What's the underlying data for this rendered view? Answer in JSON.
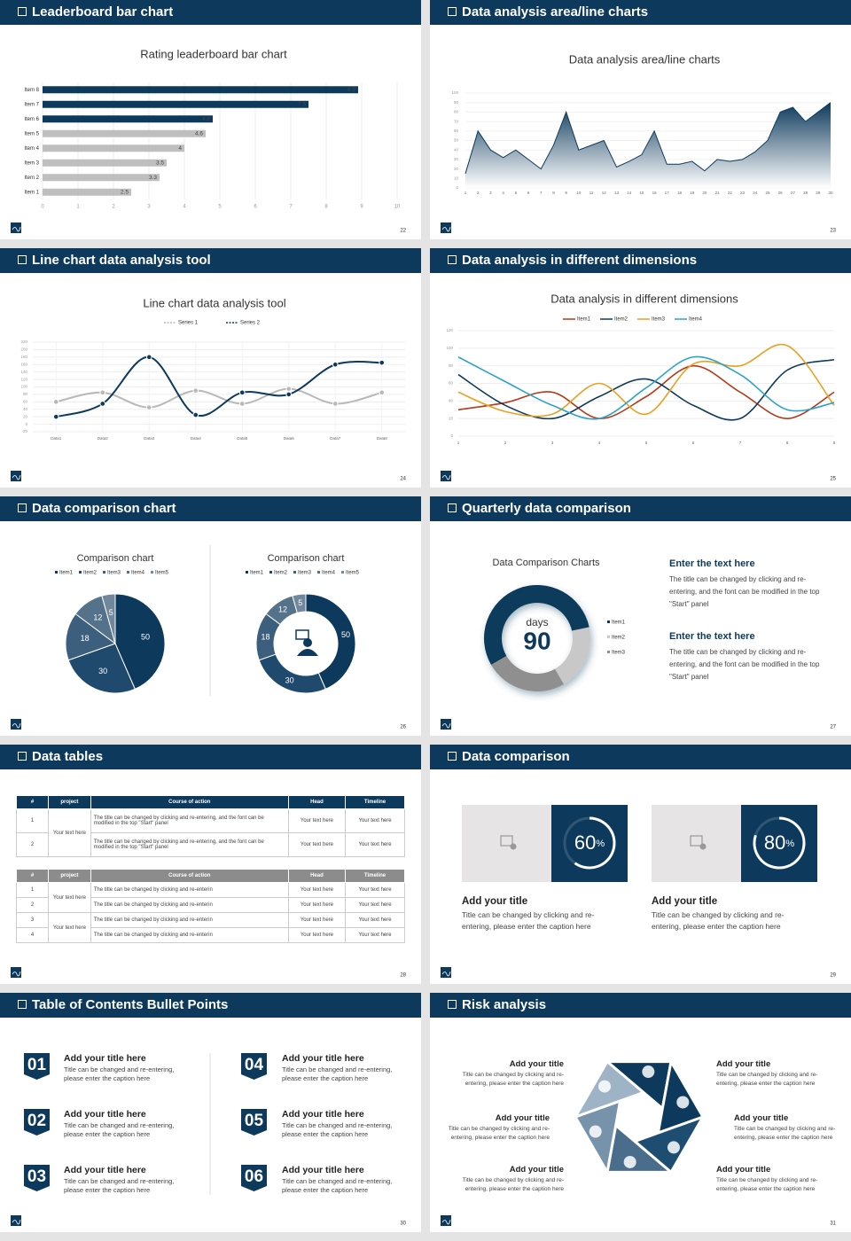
{
  "slides": [
    {
      "title": "Leaderboard bar chart",
      "page": "22",
      "chart": {
        "type": "hbar",
        "title": "Rating leaderboard bar chart",
        "categories": [
          "Item 1",
          "Item 2",
          "Item 3",
          "Item 4",
          "Item 5",
          "Item 6",
          "Item 7",
          "Item 8"
        ],
        "values": [
          2.5,
          3.3,
          3.5,
          4,
          4.6,
          4.8,
          7.5,
          8.9
        ],
        "colors": [
          "#bfbfbf",
          "#bfbfbf",
          "#bfbfbf",
          "#bfbfbf",
          "#bfbfbf",
          "#0d3a5c",
          "#0d3a5c",
          "#0d3a5c"
        ],
        "xlim": [
          0,
          10
        ],
        "xticks": [
          0,
          1,
          2,
          3,
          4,
          5,
          6,
          7,
          8,
          9,
          10
        ],
        "grid": true
      }
    },
    {
      "title": "Data analysis area/line charts",
      "page": "23",
      "chart": {
        "type": "area",
        "title": "Data analysis area/line charts",
        "x": [
          1,
          2,
          3,
          4,
          5,
          6,
          7,
          8,
          9,
          10,
          11,
          12,
          13,
          14,
          15,
          16,
          17,
          18,
          19,
          20,
          21,
          22,
          23,
          24,
          25,
          26,
          27,
          28,
          29,
          30
        ],
        "values": [
          15,
          60,
          40,
          32,
          40,
          30,
          20,
          45,
          80,
          40,
          45,
          50,
          22,
          28,
          35,
          60,
          25,
          25,
          28,
          18,
          30,
          28,
          30,
          38,
          50,
          80,
          85,
          70,
          80,
          90
        ],
        "color": "#0d3a5c",
        "ylim": [
          0,
          100
        ],
        "yticks": [
          0,
          10,
          20,
          30,
          40,
          50,
          60,
          70,
          80,
          90,
          100
        ],
        "grid": true
      }
    },
    {
      "title": "Line chart data analysis tool",
      "page": "24",
      "chart": {
        "type": "line",
        "title": "Line chart data analysis tool",
        "categories": [
          "Data1",
          "Data2",
          "Data3",
          "Data4",
          "Data5",
          "Data6",
          "Data7",
          "Data8"
        ],
        "series": [
          {
            "name": "Series 1",
            "color": "#b8b8b8",
            "values": [
              60,
              85,
              45,
              90,
              55,
              95,
              55,
              85
            ]
          },
          {
            "name": "Series 2",
            "color": "#0d3a5c",
            "values": [
              20,
              55,
              180,
              25,
              85,
              80,
              160,
              165
            ]
          }
        ],
        "markers": true,
        "ylim": [
          -20,
          220
        ],
        "yticks": [
          -20,
          0,
          20,
          40,
          60,
          80,
          100,
          120,
          140,
          160,
          180,
          200,
          220
        ],
        "grid": true
      }
    },
    {
      "title": "Data analysis in different dimensions",
      "page": "25",
      "chart": {
        "type": "line",
        "title": "Data analysis in different dimensions",
        "x": [
          1,
          2,
          3,
          4,
          5,
          6,
          7,
          8,
          9
        ],
        "series": [
          {
            "name": "Item1",
            "color": "#b5381a",
            "values": [
              30,
              38,
              50,
              20,
              45,
              80,
              50,
              20,
              50
            ]
          },
          {
            "name": "Item2",
            "color": "#0d3a5c",
            "values": [
              70,
              35,
              20,
              45,
              65,
              35,
              20,
              75,
              87
            ]
          },
          {
            "name": "Item3",
            "color": "#e8a020",
            "values": [
              50,
              28,
              25,
              60,
              25,
              82,
              80,
              103,
              35
            ]
          },
          {
            "name": "Item4",
            "color": "#2aa3c9",
            "values": [
              90,
              62,
              35,
              20,
              55,
              90,
              70,
              30,
              38
            ]
          }
        ],
        "markers": false,
        "ylim": [
          0,
          120
        ],
        "yticks": [
          0,
          20,
          40,
          60,
          80,
          100,
          120
        ],
        "grid": true
      }
    },
    {
      "title": "Data comparison chart",
      "page": "26",
      "charts": [
        {
          "type": "pie",
          "title": "Comparison chart",
          "categories": [
            "Item1",
            "Item2",
            "Item3",
            "Item4",
            "Item5"
          ],
          "values": [
            50,
            30,
            18,
            12,
            5
          ],
          "colors": [
            "#0d3a5c",
            "#1f4a6d",
            "#3b5f7d",
            "#55728b",
            "#71889c"
          ]
        },
        {
          "type": "donut",
          "title": "Comparison chart",
          "categories": [
            "Item1",
            "Item2",
            "Item3",
            "Item4",
            "Item5"
          ],
          "values": [
            50,
            30,
            18,
            12,
            5
          ],
          "colors": [
            "#0d3a5c",
            "#1f4a6d",
            "#3b5f7d",
            "#55728b",
            "#71889c"
          ]
        }
      ]
    },
    {
      "title": "Quarterly data comparison",
      "page": "27",
      "chart": {
        "type": "donut",
        "title": "Data Comparison Charts",
        "center_label": "days",
        "center_value": 90,
        "categories": [
          "Item1",
          "Item2",
          "Item3"
        ],
        "values": [
          55,
          20,
          25
        ],
        "colors": [
          "#0d3a5c",
          "#c8c8c8",
          "#8f8f8f"
        ]
      },
      "blocks": [
        {
          "heading": "Enter the text here",
          "body": "The title can be changed by clicking and re-entering, and the font can be modified in the top \"Start\" panel"
        },
        {
          "heading": "Enter the text here",
          "body": "The title can be changed by clicking and re-entering, and the font can be modified in the top \"Start\" panel"
        }
      ]
    },
    {
      "title": "Data tables",
      "page": "28",
      "tables": [
        {
          "header": [
            "#",
            "project",
            "Course of action",
            "Head",
            "Timeline"
          ],
          "groups": [
            {
              "project": "Your text here",
              "rows": [
                {
                  "no": "1",
                  "course": "The title can be changed by clicking and re-entering, and the font can be modified in the top \"Start\" panel",
                  "head": "Your text here",
                  "timeline": "Your text here"
                },
                {
                  "no": "2",
                  "course": "The title can be changed by clicking and re-entering, and the font can be modified in the top \"Start\" panel",
                  "head": "Your text here",
                  "timeline": "Your text here"
                }
              ]
            }
          ]
        },
        {
          "header": [
            "#",
            "project",
            "Course of action",
            "Head",
            "Timeline"
          ],
          "groups": [
            {
              "project": "Your text here",
              "rows": [
                {
                  "no": "1",
                  "course": "The title can be changed by clicking and re-enterin",
                  "head": "Your text here",
                  "timeline": "Your text here"
                },
                {
                  "no": "2",
                  "course": "The title can be changed by clicking and re-enterin",
                  "head": "Your text here",
                  "timeline": "Your text here"
                }
              ]
            },
            {
              "project": "Your text here",
              "rows": [
                {
                  "no": "3",
                  "course": "The title can be changed by clicking and re-enterin",
                  "head": "Your text here",
                  "timeline": "Your text here"
                },
                {
                  "no": "4",
                  "course": "The title can be changed by clicking and re-enterin",
                  "head": "Your text here",
                  "timeline": "Your text here"
                }
              ]
            }
          ]
        }
      ]
    },
    {
      "title": "Data comparison",
      "page": "29",
      "cards": [
        {
          "percent": 60,
          "unit": "%",
          "title": "Add your title",
          "body": "Title can be changed by clicking and re-entering, please enter the caption here"
        },
        {
          "percent": 80,
          "unit": "%",
          "title": "Add your title",
          "body": "Title can be changed by clicking and re-entering, please enter the caption here"
        }
      ]
    },
    {
      "title": "Table of Contents Bullet Points",
      "page": "30",
      "items": [
        {
          "number": "01",
          "title": "Add your title here",
          "body": "Title can be changed and re-entering, please enter the caption here"
        },
        {
          "number": "02",
          "title": "Add your title here",
          "body": "Title can be changed and re-entering, please enter the caption here"
        },
        {
          "number": "03",
          "title": "Add your title here",
          "body": "Title can be changed and re-entering, please enter the caption here"
        },
        {
          "number": "04",
          "title": "Add your title here",
          "body": "Title can be changed and re-entering, please enter the caption here"
        },
        {
          "number": "05",
          "title": "Add your title here",
          "body": "Title can be changed and re-entering, please enter the caption here"
        },
        {
          "number": "06",
          "title": "Add your title here",
          "body": "Title can be changed and re-entering, please enter the caption here"
        }
      ]
    },
    {
      "title": "Risk analysis",
      "page": "31",
      "blocks": [
        {
          "title": "Add your title",
          "body": "Title can be changed by clicking and re-entering, please enter the caption here"
        },
        {
          "title": "Add your title",
          "body": "Title can be changed by clicking and re-entering, please enter the caption here"
        },
        {
          "title": "Add your title",
          "body": "Title can be changed by clicking and re-entering, please enter the caption here"
        },
        {
          "title": "Add your title",
          "body": "Title can be changed by clicking and re-entering, please enter the caption here"
        },
        {
          "title": "Add your title",
          "body": "Title can be changed by clicking and re-entering, please enter the caption here"
        },
        {
          "title": "Add your title",
          "body": "Title can be changed by clicking and re-entering, please enter the caption here"
        }
      ]
    }
  ]
}
